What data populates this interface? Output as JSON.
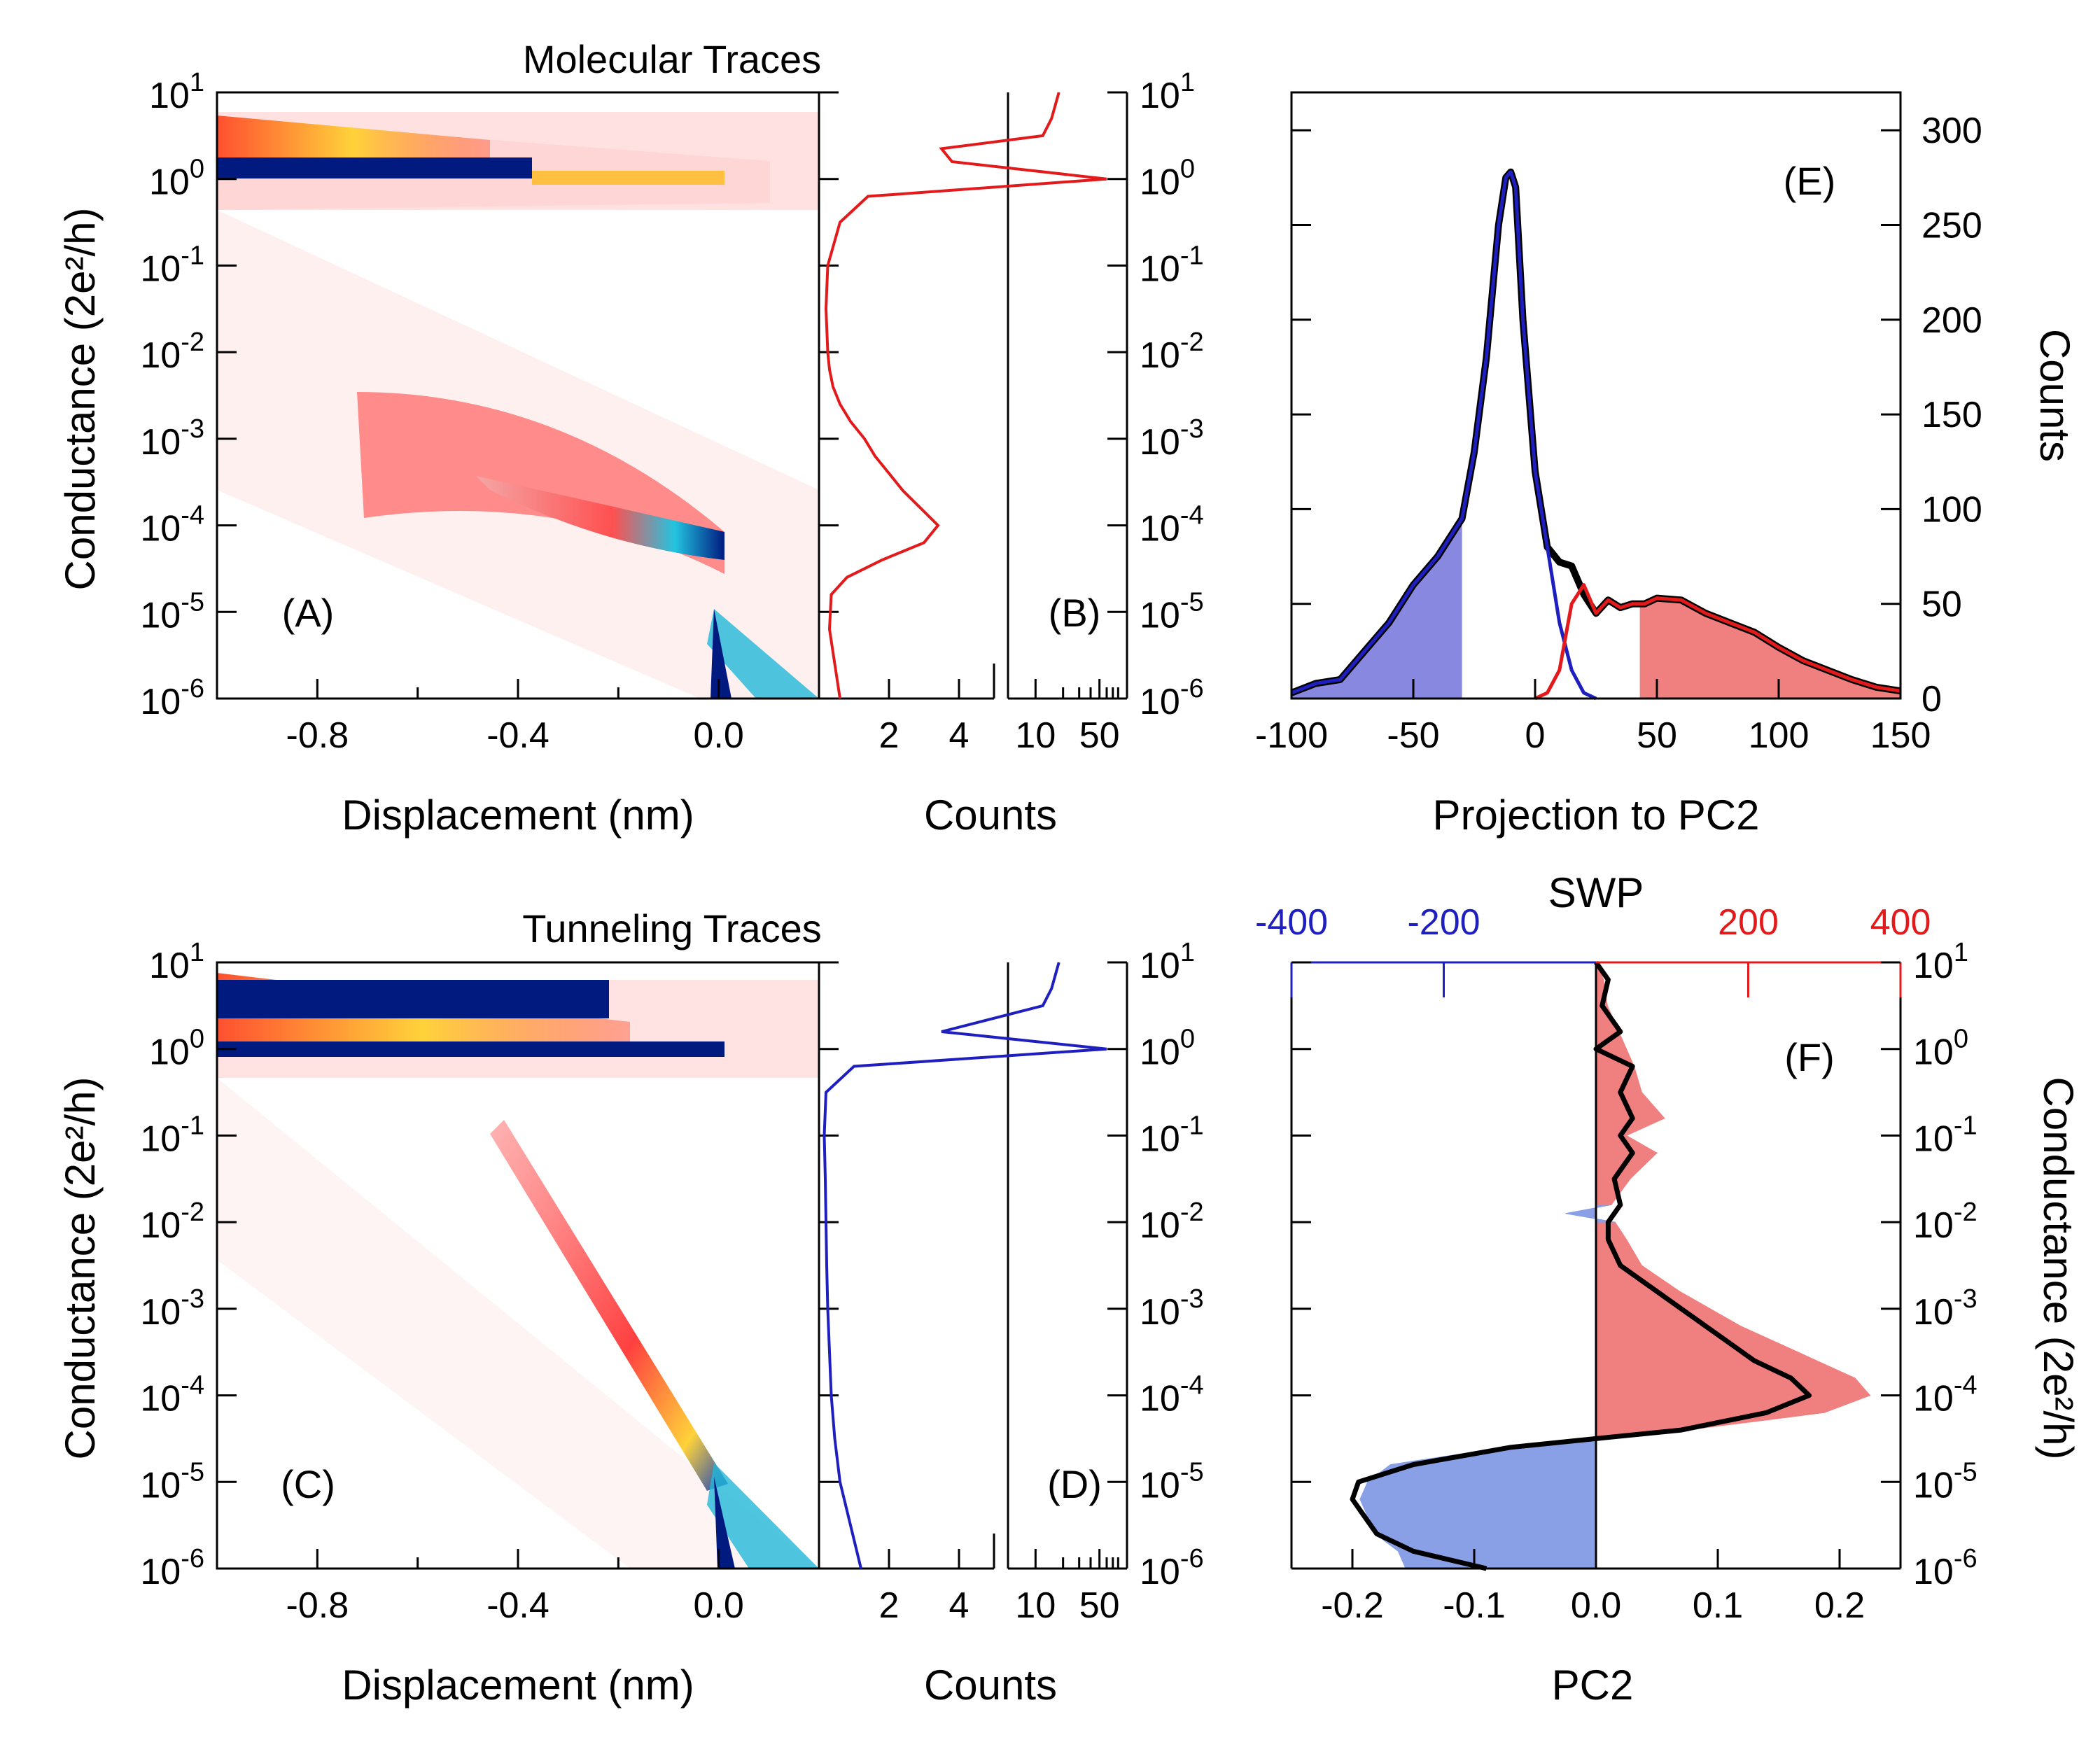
{
  "chart_data": [
    {
      "id": "A",
      "type": "heatmap",
      "title": "Molecular Traces",
      "panel_label": "(A)",
      "xlabel": "Displacement (nm)",
      "ylabel": "Conductance (2e²/h)",
      "xlim": [
        -1.0,
        0.2
      ],
      "ylim_log10": [
        -6,
        1
      ],
      "x_ticks": [
        -0.8,
        -0.4,
        0.0
      ],
      "x_tick_labels": [
        "-0.8",
        "-0.4",
        "0.0"
      ],
      "y_tick_exponents": [
        "1",
        "0",
        "-1",
        "-2",
        "-3",
        "-4",
        "-5",
        "-6"
      ],
      "features": [
        {
          "name": "contact plateau",
          "x_range": [
            -1.0,
            0.0
          ],
          "log_g": 0.0
        },
        {
          "name": "upper band",
          "x_range": [
            -1.0,
            -0.5
          ],
          "log_g": 0.35
        },
        {
          "name": "molecular plateau",
          "x": [
            -0.45,
            -0.3,
            -0.15,
            0.0
          ],
          "log_g": [
            -3.3,
            -3.6,
            -3.9,
            -4.2
          ]
        },
        {
          "name": "tunneling tail",
          "x_range": [
            0.0,
            0.2
          ],
          "log_g_range": [
            -5,
            -6
          ]
        }
      ]
    },
    {
      "id": "B",
      "type": "line",
      "panel_label": "(B)",
      "xlabel": "Counts",
      "color": "#e31a1c",
      "x_tick_labels": [
        "2",
        "4",
        "10",
        "50"
      ],
      "log_g": [
        -6,
        -5.6,
        -5.2,
        -4.8,
        -4.6,
        -4.4,
        -4.2,
        -4.0,
        -3.8,
        -3.6,
        -3.4,
        -3.2,
        -3.0,
        -2.8,
        -2.6,
        -2.4,
        -2.2,
        -2.0,
        -1.5,
        -1.0,
        -0.5,
        -0.2,
        0.0,
        0.2,
        0.35,
        0.5,
        0.7,
        1.0
      ],
      "counts": [
        0.6,
        0.45,
        0.3,
        0.35,
        0.8,
        1.8,
        3.0,
        3.4,
        2.9,
        2.4,
        2.0,
        1.6,
        1.3,
        0.9,
        0.6,
        0.4,
        0.3,
        0.25,
        0.2,
        0.25,
        0.6,
        1.4,
        60,
        3.8,
        3.5,
        12,
        15,
        18
      ]
    },
    {
      "id": "C",
      "type": "heatmap",
      "title": "Tunneling Traces",
      "panel_label": "(C)",
      "xlabel": "Displacement (nm)",
      "ylabel": "Conductance (2e²/h)",
      "xlim": [
        -1.0,
        0.2
      ],
      "ylim_log10": [
        -6,
        1
      ],
      "x_ticks": [
        -0.8,
        -0.4,
        0.0
      ],
      "x_tick_labels": [
        "-0.8",
        "-0.4",
        "0.0"
      ],
      "y_tick_exponents": [
        "1",
        "0",
        "-1",
        "-2",
        "-3",
        "-4",
        "-5",
        "-6"
      ],
      "features": [
        {
          "name": "contact plateau",
          "x_range": [
            -1.0,
            0.0
          ],
          "log_g": 0.0
        },
        {
          "name": "upper band",
          "x_range": [
            -1.0,
            -0.3
          ],
          "log_g": 0.5
        },
        {
          "name": "tunneling decay",
          "x": [
            -0.4,
            -0.2,
            0.0
          ],
          "log_g": [
            -1.0,
            -3.0,
            -5.0
          ]
        }
      ]
    },
    {
      "id": "D",
      "type": "line",
      "panel_label": "(D)",
      "xlabel": "Counts",
      "color": "#1f1fbf",
      "x_tick_labels": [
        "2",
        "4",
        "10",
        "50"
      ],
      "log_g": [
        -6,
        -5.5,
        -5.0,
        -4.5,
        -4.0,
        -3.5,
        -3.0,
        -2.5,
        -2.0,
        -1.5,
        -1.0,
        -0.5,
        -0.2,
        0.0,
        0.2,
        0.5,
        0.7,
        1.0
      ],
      "counts": [
        1.2,
        0.9,
        0.6,
        0.45,
        0.35,
        0.3,
        0.25,
        0.22,
        0.2,
        0.18,
        0.15,
        0.2,
        1.0,
        60,
        3.5,
        12,
        15,
        18
      ]
    },
    {
      "id": "E",
      "type": "line",
      "panel_label": "(E)",
      "xlabel": "Projection to PC2",
      "ylabel": "Counts",
      "xlim": [
        -100,
        150
      ],
      "ylim": [
        0,
        320
      ],
      "x_ticks": [
        -100,
        -50,
        0,
        50,
        100,
        150
      ],
      "y_ticks": [
        0,
        50,
        100,
        150,
        200,
        250,
        300
      ],
      "series": [
        {
          "name": "total",
          "color": "#000000",
          "x": [
            -100,
            -90,
            -80,
            -70,
            -60,
            -50,
            -40,
            -30,
            -25,
            -20,
            -15,
            -12,
            -10,
            -8,
            -5,
            0,
            5,
            10,
            15,
            20,
            25,
            30,
            35,
            40,
            45,
            50,
            60,
            70,
            80,
            90,
            100,
            110,
            120,
            130,
            140,
            150
          ],
          "values": [
            3,
            8,
            10,
            25,
            40,
            60,
            75,
            95,
            130,
            180,
            250,
            275,
            278,
            270,
            200,
            120,
            80,
            72,
            70,
            55,
            45,
            52,
            48,
            50,
            50,
            53,
            52,
            45,
            40,
            35,
            27,
            20,
            15,
            10,
            6,
            4
          ]
        },
        {
          "name": "molecular",
          "color": "#1f1fbf",
          "x": [
            -100,
            -90,
            -80,
            -70,
            -60,
            -50,
            -40,
            -30,
            -25,
            -20,
            -15,
            -12,
            -10,
            -8,
            -5,
            0,
            5,
            10,
            15,
            20,
            25
          ],
          "values": [
            3,
            8,
            10,
            25,
            40,
            60,
            75,
            95,
            130,
            180,
            250,
            275,
            278,
            270,
            200,
            120,
            80,
            40,
            15,
            3,
            0
          ]
        },
        {
          "name": "tunneling",
          "color": "#e31a1c",
          "x": [
            0,
            5,
            10,
            15,
            20,
            25,
            30,
            35,
            40,
            45,
            50,
            60,
            70,
            80,
            90,
            100,
            110,
            120,
            130,
            140,
            150
          ],
          "values": [
            0,
            3,
            15,
            50,
            60,
            45,
            52,
            48,
            50,
            50,
            53,
            52,
            45,
            40,
            35,
            27,
            20,
            15,
            10,
            6,
            4
          ]
        }
      ],
      "shaded": [
        {
          "name": "selected molecular",
          "color": "#8888e0",
          "x_range": [
            -100,
            -30
          ]
        },
        {
          "name": "selected tunneling",
          "color": "#f08080",
          "x_range": [
            43,
            150
          ]
        }
      ]
    },
    {
      "id": "F",
      "type": "line",
      "panel_label": "(F)",
      "xlabel": "PC2",
      "top_xlabel": "SWP",
      "ylabel": "Conductance (2e²/h)",
      "xlim": [
        -0.25,
        0.25
      ],
      "top_xlim": [
        -400,
        400
      ],
      "ylim_log10": [
        -6,
        1
      ],
      "x_ticks": [
        -0.2,
        -0.1,
        0.0,
        0.1,
        0.2
      ],
      "x_tick_labels": [
        "-0.2",
        "-0.1",
        "0.0",
        "0.1",
        "0.2"
      ],
      "top_ticks": [
        -400,
        -200,
        200,
        400
      ],
      "top_tick_labels": [
        "-400",
        "-200",
        "200",
        "400"
      ],
      "y_tick_exponents": [
        "1",
        "0",
        "-1",
        "-2",
        "-3",
        "-4",
        "-5",
        "-6"
      ],
      "series": [
        {
          "name": "PC2",
          "color": "#000000",
          "log_g": [
            -6,
            -5.8,
            -5.6,
            -5.4,
            -5.2,
            -5.0,
            -4.8,
            -4.6,
            -4.5,
            -4.4,
            -4.2,
            -4.0,
            -3.8,
            -3.6,
            -3.4,
            -3.2,
            -3.0,
            -2.8,
            -2.5,
            -2.2,
            -2.0,
            -1.8,
            -1.5,
            -1.2,
            -1.0,
            -0.8,
            -0.5,
            -0.2,
            0.0,
            0.2,
            0.5,
            0.8,
            1.0
          ],
          "values": [
            -0.09,
            -0.15,
            -0.18,
            -0.19,
            -0.2,
            -0.195,
            -0.15,
            -0.07,
            0.0,
            0.07,
            0.14,
            0.175,
            0.16,
            0.13,
            0.11,
            0.09,
            0.07,
            0.05,
            0.02,
            0.01,
            0.01,
            0.02,
            0.015,
            0.03,
            0.02,
            0.03,
            0.02,
            0.03,
            0.0,
            0.02,
            0.005,
            0.01,
            0.0
          ]
        },
        {
          "name": "SWP",
          "fill_positive": "#f08080",
          "fill_negative": "#8aa0e6",
          "log_g": [
            -6,
            -5.8,
            -5.6,
            -5.4,
            -5.2,
            -5.0,
            -4.8,
            -4.6,
            -4.5,
            -4.4,
            -4.2,
            -4.0,
            -3.8,
            -3.6,
            -3.4,
            -3.2,
            -3.0,
            -2.8,
            -2.5,
            -2.2,
            -2.0,
            -1.9,
            -1.8,
            -1.5,
            -1.2,
            -1.0,
            -0.8,
            -0.5,
            -0.2,
            0.0,
            0.2,
            0.5,
            0.8,
            1.0
          ],
          "values": [
            -250,
            -260,
            -290,
            -300,
            -310,
            -300,
            -270,
            -120,
            0,
            120,
            300,
            360,
            340,
            290,
            240,
            190,
            150,
            110,
            60,
            40,
            25,
            -40,
            20,
            45,
            80,
            40,
            90,
            60,
            50,
            40,
            30,
            15,
            10,
            0
          ]
        }
      ]
    }
  ]
}
